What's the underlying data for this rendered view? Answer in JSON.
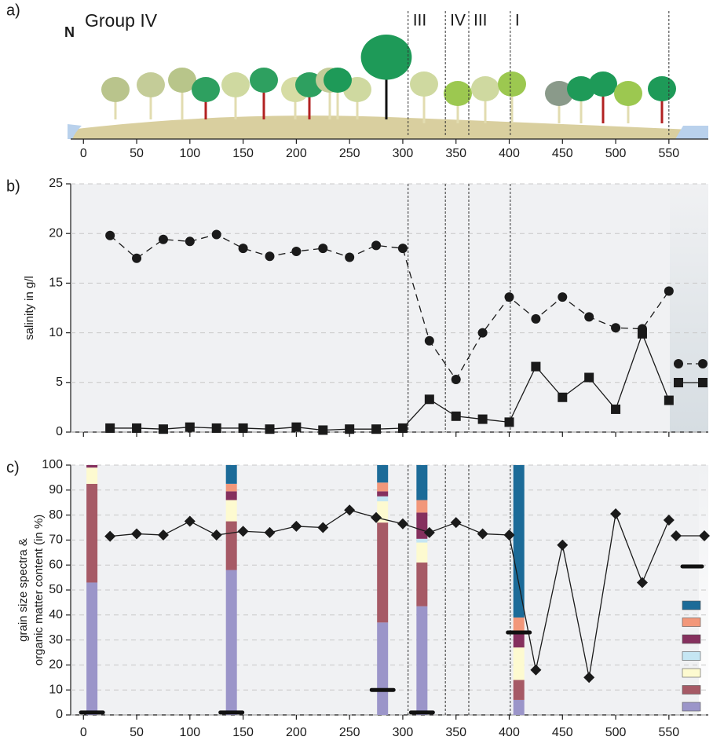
{
  "chart_data": [
    {
      "type": "transect",
      "panel_label": "a)",
      "north": "N",
      "group_label": "Group IV",
      "xlim": [
        -12,
        587
      ],
      "xticks": [
        0,
        50,
        100,
        150,
        200,
        250,
        300,
        350,
        400,
        450,
        500,
        550
      ],
      "dividers": [
        305,
        340,
        362,
        401,
        550
      ],
      "zone_labels": [
        "III",
        "IV",
        "III",
        "I"
      ]
    },
    {
      "type": "line",
      "panel_label": "b)",
      "ylabel": "salinity in g/l",
      "xlim": [
        -12,
        587
      ],
      "ylim": [
        0,
        25
      ],
      "yticks": [
        0,
        5,
        10,
        15,
        20,
        25
      ],
      "grid": true,
      "x": [
        25,
        50,
        75,
        100,
        125,
        150,
        175,
        200,
        225,
        250,
        275,
        300,
        325,
        350,
        375,
        400,
        425,
        450,
        475,
        500,
        525,
        550
      ],
      "series": [
        {
          "marker": "circle",
          "dashed": true,
          "color": "#1a1a1a",
          "values": [
            19.8,
            17.5,
            19.4,
            19.2,
            19.9,
            18.5,
            17.7,
            18.2,
            18.5,
            17.6,
            18.8,
            18.5,
            9.2,
            5.3,
            10.0,
            13.6,
            11.4,
            13.6,
            11.6,
            10.5,
            10.4,
            14.2
          ]
        },
        {
          "marker": "square",
          "dashed": false,
          "color": "#1a1a1a",
          "values": [
            0.4,
            0.4,
            0.3,
            0.5,
            0.4,
            0.4,
            0.3,
            0.5,
            0.2,
            0.3,
            0.3,
            0.4,
            3.3,
            1.6,
            1.3,
            1.0,
            6.6,
            3.5,
            5.5,
            2.3,
            9.9,
            3.2
          ]
        }
      ]
    },
    {
      "type": "stacked_bar_line",
      "panel_label": "c)",
      "ylabel": [
        "grain size spectra &",
        "organic matter content (in %)"
      ],
      "xlim": [
        -12,
        587
      ],
      "xticks": [
        0,
        50,
        100,
        150,
        200,
        250,
        300,
        350,
        400,
        450,
        500,
        550
      ],
      "ylim": [
        0,
        100
      ],
      "yticks": [
        0,
        10,
        20,
        30,
        40,
        50,
        60,
        70,
        80,
        90,
        100
      ],
      "grid": true,
      "bar_x": [
        8,
        139,
        281,
        318,
        409
      ],
      "series": [
        {
          "color": "#9b95c9",
          "values": [
            53,
            58,
            37,
            43.5,
            6
          ]
        },
        {
          "color": "#a65a66",
          "values": [
            39.5,
            19.5,
            40,
            17.5,
            8
          ]
        },
        {
          "color": "#fdfad0",
          "values": [
            6.5,
            8.5,
            8.5,
            8,
            13
          ]
        },
        {
          "color": "#c5e6f3",
          "values": [
            0,
            0,
            2,
            1.5,
            0
          ]
        },
        {
          "color": "#85305e",
          "values": [
            1,
            3.5,
            2,
            10.5,
            6
          ]
        },
        {
          "color": "#f2977a",
          "values": [
            0,
            3,
            3.5,
            5,
            6
          ]
        },
        {
          "color": "#1c6b98",
          "values": [
            0,
            7.5,
            7,
            14,
            61
          ]
        }
      ],
      "markers": [
        1,
        1,
        10,
        1,
        33
      ],
      "marker_color": "#111111",
      "line": {
        "marker": "diamond",
        "color": "#1a1a1a",
        "x": [
          25,
          50,
          75,
          100,
          125,
          150,
          175,
          200,
          225,
          250,
          275,
          300,
          325,
          350,
          375,
          400,
          425,
          450,
          475,
          500,
          525,
          550
        ],
        "values": [
          71.5,
          72.5,
          72,
          77.5,
          72,
          73.5,
          73,
          75.5,
          75,
          82,
          79,
          76.5,
          73,
          77,
          72.5,
          72,
          18,
          68,
          15,
          80.5,
          53,
          78
        ]
      }
    }
  ]
}
